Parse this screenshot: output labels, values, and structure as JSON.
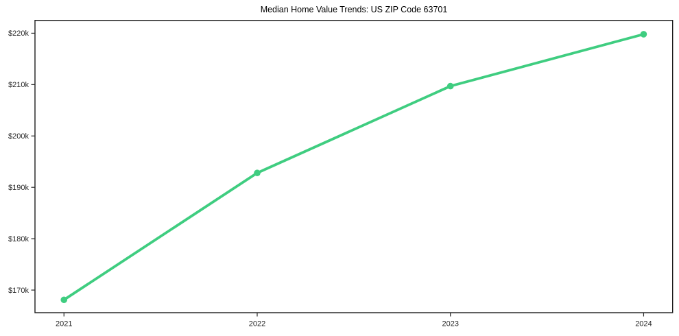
{
  "chart_data": {
    "type": "line",
    "title": "Median Home Value Trends: US ZIP Code 63701",
    "x": [
      2021,
      2022,
      2023,
      2024
    ],
    "x_tick_labels": [
      "2021",
      "2022",
      "2023",
      "2024"
    ],
    "series": [
      {
        "name": "Median home value",
        "values": [
          168100,
          192800,
          209700,
          219800
        ]
      }
    ],
    "y_ticks": [
      170000,
      180000,
      190000,
      200000,
      210000,
      220000
    ],
    "y_tick_labels": [
      "$170k",
      "$180k",
      "$190k",
      "$200k",
      "$210k",
      "$220k"
    ],
    "xlabel": "",
    "ylabel": "",
    "xlim": [
      2020.85,
      2024.15
    ],
    "ylim": [
      165600,
      222500
    ],
    "grid": false,
    "legend": false,
    "marker": "circle",
    "line_color": "#3FCD80",
    "spine_color": "#1c1c1c",
    "tick_color": "#262626",
    "tick_label_color": "#262626",
    "title_color": "#000000",
    "background": "#ffffff"
  }
}
